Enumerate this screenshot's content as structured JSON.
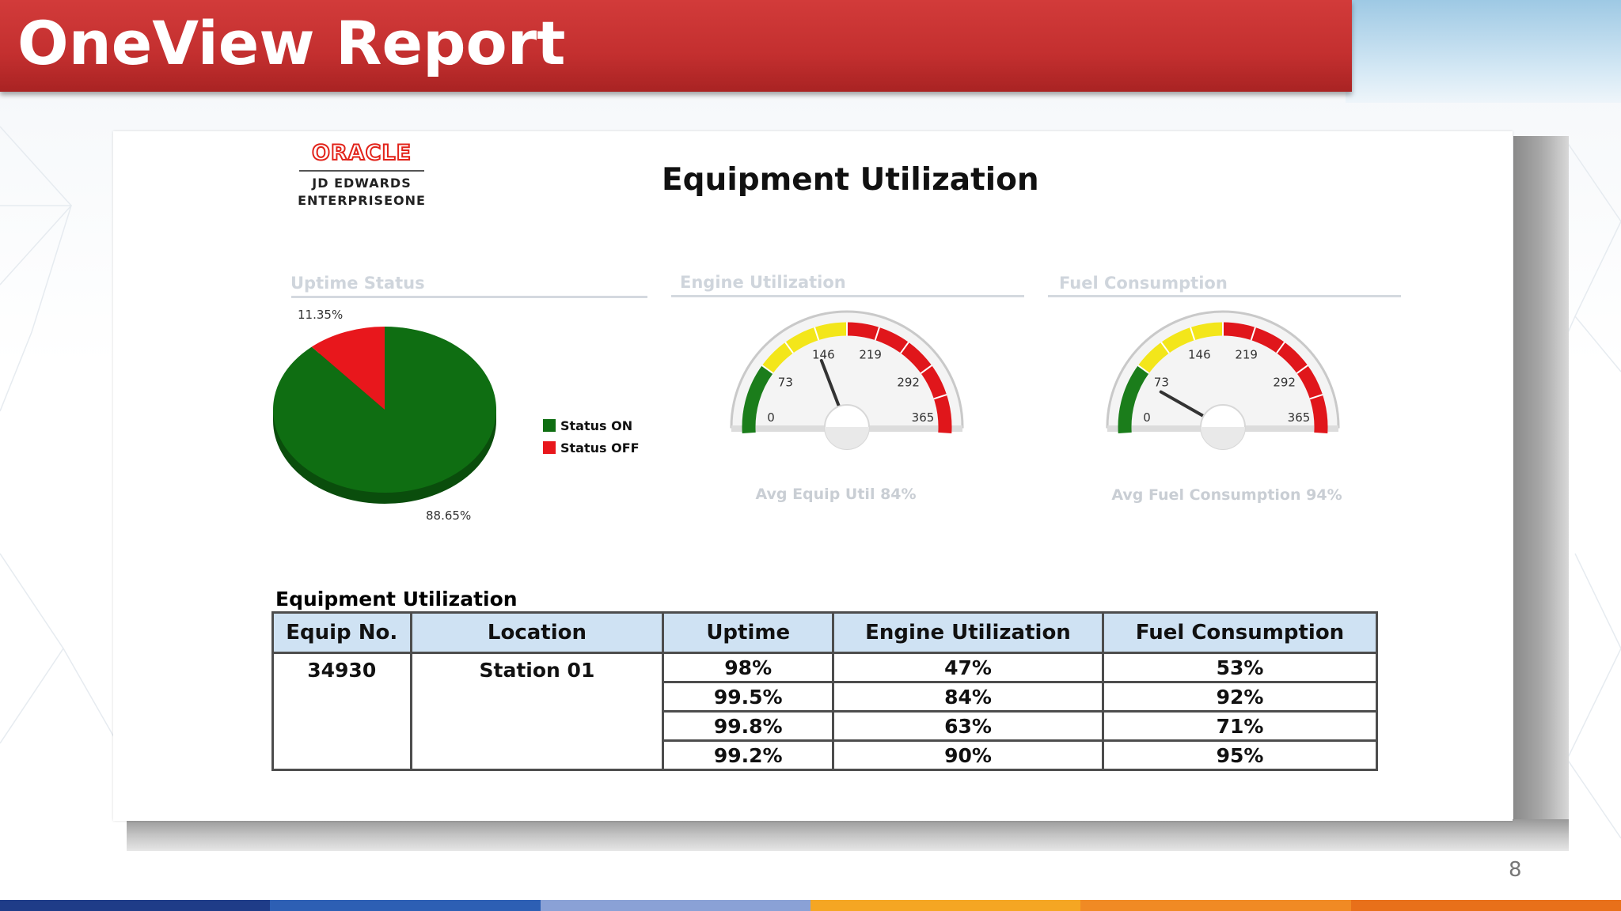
{
  "slide": {
    "title": "OneView Report",
    "page_number": "8"
  },
  "logo": {
    "word": "ORACLE",
    "line1": "JD EDWARDS",
    "line2": "ENTERPRISEONE"
  },
  "dashboard_title": "Equipment Utilization",
  "colors": {
    "header_red": "#c7302f",
    "status_on": "#0f6e12",
    "status_off": "#e8171c",
    "gauge_green": "#1b7d1b",
    "gauge_yellow": "#f3e61a",
    "gauge_red": "#e0161b",
    "table_header": "#cfe2f3"
  },
  "chart_data": [
    {
      "type": "pie",
      "title": "Uptime Status",
      "labels": [
        "Status ON",
        "Status OFF"
      ],
      "values": [
        88.65,
        11.35
      ],
      "value_labels": [
        "88.65%",
        "11.35%"
      ],
      "colors": [
        "#0f6e12",
        "#e8171c"
      ],
      "legend": "right"
    },
    {
      "type": "gauge",
      "title": "Engine Utilization",
      "range": [
        0,
        365
      ],
      "ticks": [
        "0",
        "73",
        "146",
        "219",
        "292",
        "365"
      ],
      "bands": [
        {
          "from": 0,
          "to": 73,
          "color": "#1b7d1b"
        },
        {
          "from": 73,
          "to": 182,
          "color": "#f3e61a"
        },
        {
          "from": 182,
          "to": 365,
          "color": "#e0161b"
        }
      ],
      "value": 140,
      "caption": "Avg Equip Util 84%"
    },
    {
      "type": "gauge",
      "title": "Fuel Consumption",
      "range": [
        0,
        365
      ],
      "ticks": [
        "0",
        "73",
        "146",
        "219",
        "292",
        "365"
      ],
      "bands": [
        {
          "from": 0,
          "to": 73,
          "color": "#1b7d1b"
        },
        {
          "from": 73,
          "to": 182,
          "color": "#f3e61a"
        },
        {
          "from": 182,
          "to": 365,
          "color": "#e0161b"
        }
      ],
      "value": 60,
      "caption": "Avg Fuel Consumption 94%"
    },
    {
      "type": "table",
      "title": "Equipment Utilization",
      "columns": [
        "Equip No.",
        "Location",
        "Uptime",
        "Engine Utilization",
        "Fuel Consumption"
      ],
      "equip_no": "34930",
      "location": "Station 01",
      "rows": [
        {
          "uptime": "98%",
          "engine": "47%",
          "fuel": "53%"
        },
        {
          "uptime": "99.5%",
          "engine": "84%",
          "fuel": "92%"
        },
        {
          "uptime": "99.8%",
          "engine": "63%",
          "fuel": "71%"
        },
        {
          "uptime": "99.2%",
          "engine": "90%",
          "fuel": "95%"
        }
      ]
    }
  ],
  "bottom_bar_colors": [
    "#1f3c88",
    "#2d5fb4",
    "#8aa1d6",
    "#f5a623",
    "#f08a24",
    "#e8701a"
  ]
}
